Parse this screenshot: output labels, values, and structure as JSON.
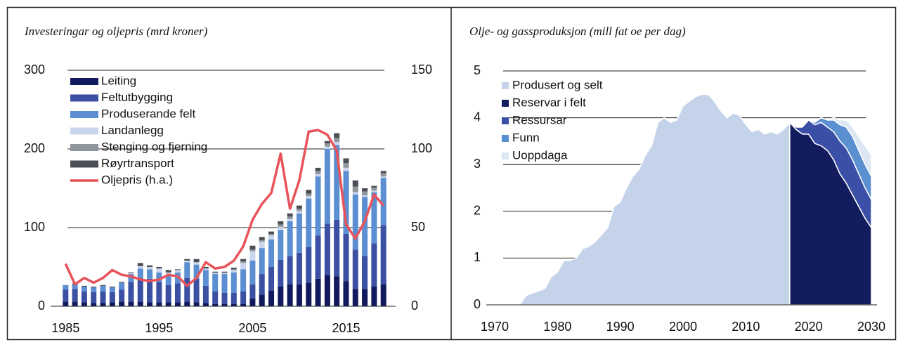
{
  "chart_data": [
    {
      "type": "bar",
      "title": "Investeringar og oljepris (mrd kroner)",
      "x": [
        1985,
        1986,
        1987,
        1988,
        1989,
        1990,
        1991,
        1992,
        1993,
        1994,
        1995,
        1996,
        1997,
        1998,
        1999,
        2000,
        2001,
        2002,
        2003,
        2004,
        2005,
        2006,
        2007,
        2008,
        2009,
        2010,
        2011,
        2012,
        2013,
        2014,
        2015,
        2016,
        2017,
        2018,
        2019
      ],
      "xlim": [
        1984.3,
        2019.7
      ],
      "xticks": [
        1985,
        1995,
        2005,
        2015
      ],
      "ylim": [
        0,
        300
      ],
      "yticks": [
        0,
        100,
        200,
        300
      ],
      "y2lim": [
        0,
        150
      ],
      "y2ticks": [
        0,
        50,
        100,
        150
      ],
      "grid": true,
      "legend": "upper left",
      "series": [
        {
          "name": "Leiting",
          "color": "#111a5c",
          "values": [
            6,
            6,
            5,
            4,
            4,
            5,
            6,
            6,
            6,
            5,
            5,
            5,
            5,
            6,
            5,
            4,
            3,
            3,
            3,
            3,
            10,
            15,
            20,
            25,
            28,
            28,
            30,
            35,
            40,
            38,
            32,
            22,
            22,
            25,
            28
          ]
        },
        {
          "name": "Feltutbygging",
          "color": "#3b4fa3",
          "values": [
            15,
            16,
            14,
            14,
            15,
            13,
            15,
            25,
            30,
            30,
            26,
            22,
            24,
            30,
            30,
            22,
            16,
            14,
            14,
            16,
            18,
            26,
            30,
            34,
            36,
            40,
            45,
            55,
            65,
            72,
            60,
            50,
            42,
            55,
            75
          ]
        },
        {
          "name": "Produserande felt",
          "color": "#5b8fd1",
          "values": [
            6,
            6,
            6,
            6,
            7,
            6,
            9,
            10,
            12,
            12,
            12,
            12,
            14,
            20,
            18,
            20,
            22,
            24,
            26,
            28,
            30,
            33,
            35,
            38,
            44,
            50,
            62,
            75,
            95,
            95,
            80,
            70,
            75,
            65,
            60
          ]
        },
        {
          "name": "Landanlegg",
          "color": "#c9d6ee",
          "values": [
            0,
            0,
            0,
            0,
            0,
            0,
            0,
            1,
            3,
            3,
            5,
            4,
            3,
            2,
            3,
            2,
            1,
            1,
            3,
            8,
            12,
            8,
            5,
            4,
            3,
            3,
            3,
            3,
            3,
            4,
            4,
            3,
            2,
            2,
            2
          ]
        },
        {
          "name": "Stenging og fjerning",
          "color": "#8f959c",
          "values": [
            0,
            0,
            0,
            0,
            0,
            0,
            0,
            0,
            0,
            0,
            0,
            0,
            0,
            0,
            0,
            0,
            1,
            1,
            1,
            2,
            2,
            2,
            2,
            3,
            3,
            3,
            3,
            4,
            4,
            5,
            6,
            7,
            5,
            4,
            4
          ]
        },
        {
          "name": "Røyrtransport",
          "color": "#4a4f55",
          "values": [
            0,
            1,
            1,
            1,
            1,
            1,
            1,
            1,
            4,
            2,
            2,
            3,
            1,
            2,
            4,
            2,
            1,
            1,
            2,
            3,
            5,
            4,
            3,
            4,
            4,
            4,
            5,
            4,
            3,
            6,
            6,
            8,
            4,
            2,
            3
          ]
        },
        {
          "name": "Oljepris (h.a.)",
          "color": "#e8535a",
          "type": "line",
          "axis": "y2",
          "values": [
            27,
            14,
            18,
            15,
            18,
            23,
            20,
            19,
            17,
            16,
            17,
            20,
            19,
            13,
            18,
            28,
            24,
            25,
            29,
            38,
            55,
            65,
            72,
            97,
            62,
            80,
            111,
            112,
            109,
            99,
            52,
            43,
            54,
            71,
            64
          ]
        }
      ]
    },
    {
      "type": "area",
      "title": "Olje- og gassproduksjon (mill fat oe per dag)",
      "x": [
        1970,
        1971,
        1972,
        1973,
        1974,
        1975,
        1976,
        1977,
        1978,
        1979,
        1980,
        1981,
        1982,
        1983,
        1984,
        1985,
        1986,
        1987,
        1988,
        1989,
        1990,
        1991,
        1992,
        1993,
        1994,
        1995,
        1996,
        1997,
        1998,
        1999,
        2000,
        2001,
        2002,
        2003,
        2004,
        2005,
        2006,
        2007,
        2008,
        2009,
        2010,
        2011,
        2012,
        2013,
        2014,
        2015,
        2016,
        2017,
        2018,
        2019,
        2020,
        2021,
        2022,
        2023,
        2024,
        2025,
        2026,
        2027,
        2028,
        2029,
        2030
      ],
      "xlim": [
        1970,
        2030
      ],
      "xticks": [
        1970,
        1980,
        1990,
        2000,
        2010,
        2020,
        2030
      ],
      "ylim": [
        0,
        5
      ],
      "yticks": [
        0,
        1,
        2,
        3,
        4,
        5
      ],
      "grid": true,
      "legend": "upper left",
      "series": [
        {
          "name": "Produsert og selt",
          "color": "#c5d3ea",
          "values": [
            0,
            0,
            0,
            0,
            0,
            0.2,
            0.25,
            0.3,
            0.35,
            0.6,
            0.7,
            0.95,
            0.95,
            1.0,
            1.2,
            1.25,
            1.35,
            1.5,
            1.65,
            2.1,
            2.2,
            2.5,
            2.75,
            2.9,
            3.2,
            3.4,
            3.9,
            4.0,
            3.9,
            3.95,
            4.25,
            4.35,
            4.45,
            4.5,
            4.5,
            4.35,
            4.15,
            4.0,
            4.1,
            4.05,
            3.85,
            3.7,
            3.75,
            3.65,
            3.7,
            3.65,
            3.75,
            3.9,
            null,
            null,
            null,
            null,
            null,
            null,
            null,
            null,
            null,
            null,
            null,
            null,
            null
          ]
        },
        {
          "name": "Reservar i felt",
          "color": "#131c5e",
          "values": [
            null,
            null,
            null,
            null,
            null,
            null,
            null,
            null,
            null,
            null,
            null,
            null,
            null,
            null,
            null,
            null,
            null,
            null,
            null,
            null,
            null,
            null,
            null,
            null,
            null,
            null,
            null,
            null,
            null,
            null,
            null,
            null,
            null,
            null,
            null,
            null,
            null,
            null,
            null,
            null,
            null,
            null,
            null,
            null,
            null,
            null,
            null,
            3.9,
            3.75,
            3.65,
            3.65,
            3.45,
            3.4,
            3.3,
            3.1,
            2.8,
            2.6,
            2.35,
            2.1,
            1.85,
            1.65
          ]
        },
        {
          "name": "Ressursar",
          "color": "#3c4fa6",
          "values": [
            null,
            null,
            null,
            null,
            null,
            null,
            null,
            null,
            null,
            null,
            null,
            null,
            null,
            null,
            null,
            null,
            null,
            null,
            null,
            null,
            null,
            null,
            null,
            null,
            null,
            null,
            null,
            null,
            null,
            null,
            null,
            null,
            null,
            null,
            null,
            null,
            null,
            null,
            null,
            null,
            null,
            null,
            null,
            null,
            null,
            null,
            null,
            0,
            0.05,
            0.15,
            0.3,
            0.4,
            0.5,
            0.5,
            0.6,
            0.7,
            0.75,
            0.75,
            0.7,
            0.65,
            0.6
          ]
        },
        {
          "name": "Funn",
          "color": "#5a8fd0",
          "values": [
            null,
            null,
            null,
            null,
            null,
            null,
            null,
            null,
            null,
            null,
            null,
            null,
            null,
            null,
            null,
            null,
            null,
            null,
            null,
            null,
            null,
            null,
            null,
            null,
            null,
            null,
            null,
            null,
            null,
            null,
            null,
            null,
            null,
            null,
            null,
            null,
            null,
            null,
            null,
            null,
            null,
            null,
            null,
            null,
            null,
            null,
            null,
            0,
            0,
            0,
            0,
            0.05,
            0.1,
            0.15,
            0.25,
            0.35,
            0.45,
            0.5,
            0.5,
            0.5,
            0.5
          ]
        },
        {
          "name": "Uoppdaga",
          "color": "#dce7f3",
          "values": [
            null,
            null,
            null,
            null,
            null,
            null,
            null,
            null,
            null,
            null,
            null,
            null,
            null,
            null,
            null,
            null,
            null,
            null,
            null,
            null,
            null,
            null,
            null,
            null,
            null,
            null,
            null,
            null,
            null,
            null,
            null,
            null,
            null,
            null,
            null,
            null,
            null,
            null,
            null,
            null,
            null,
            null,
            null,
            null,
            null,
            null,
            null,
            0,
            0,
            0,
            0,
            0,
            0,
            0,
            0.05,
            0.1,
            0.15,
            0.2,
            0.3,
            0.4,
            0.45
          ]
        }
      ]
    }
  ]
}
